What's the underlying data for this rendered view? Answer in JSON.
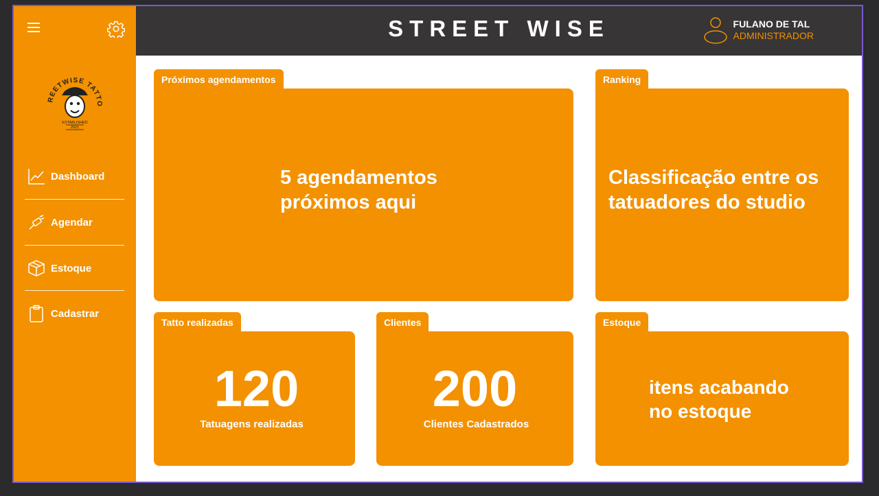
{
  "app": {
    "brand": "STREET WISE"
  },
  "user": {
    "name": "FULANO DE TAL",
    "role": "ADMINISTRADOR"
  },
  "sidebar": {
    "items": [
      {
        "label": "Dashboard",
        "icon": "chart-line-icon"
      },
      {
        "label": "Agendar",
        "icon": "tattoo-machine-icon"
      },
      {
        "label": "Estoque",
        "icon": "box-icon"
      },
      {
        "label": "Cadastrar",
        "icon": "clipboard-icon"
      }
    ]
  },
  "cards": {
    "agendamentos": {
      "tab": "Próximos agendamentos",
      "text_line1": "5 agendamentos",
      "text_line2": "próximos aqui"
    },
    "ranking": {
      "tab": "Ranking",
      "text_line1": "Classificação entre os",
      "text_line2": "tatuadores do studio"
    },
    "tatto": {
      "tab": "Tatto realizadas",
      "value": "120",
      "caption": "Tatuagens realizadas"
    },
    "clientes": {
      "tab": "Clientes",
      "value": "200",
      "caption": "Clientes Cadastrados"
    },
    "estoque": {
      "tab": "Estoque",
      "text_line1": "itens acabando",
      "text_line2": "no estoque"
    }
  },
  "logo": {
    "arc_text": "STREETWISE TATTOO",
    "est_text": "ESTABLISHED",
    "year": "2021"
  },
  "colors": {
    "accent": "#f39100",
    "topbar": "#373536",
    "frame_border": "#7a5ad0"
  }
}
